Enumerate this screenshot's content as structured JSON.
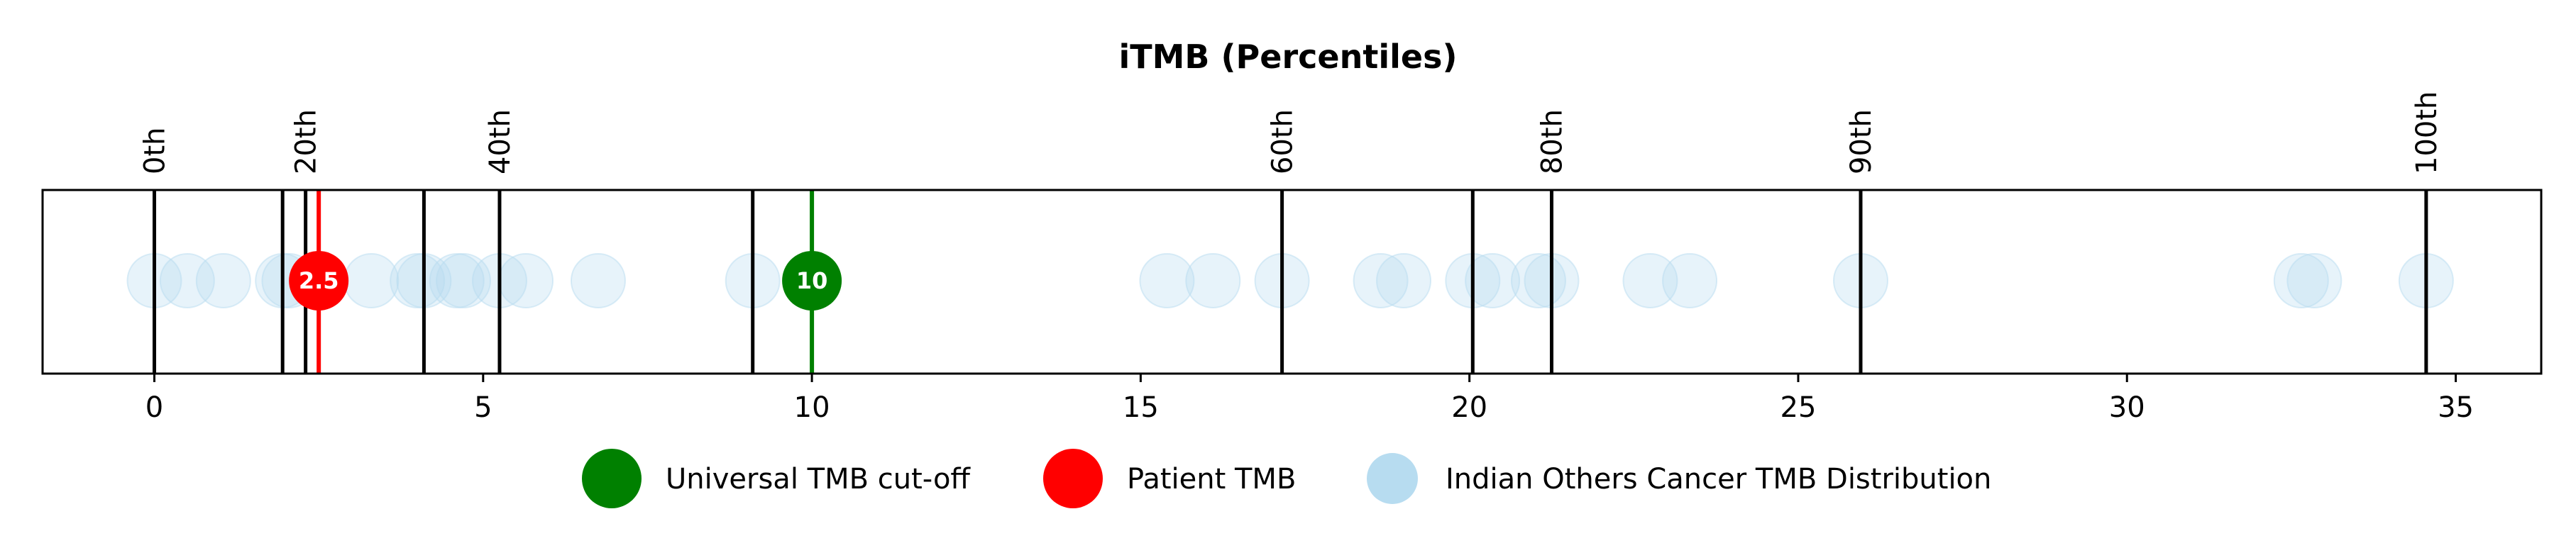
{
  "chart_data": {
    "type": "scatter",
    "title": "iTMB (Percentiles)",
    "xlim": [
      -1.7,
      36.3
    ],
    "xticks": [
      0,
      5,
      10,
      15,
      20,
      25,
      30,
      35
    ],
    "grid": false,
    "legend_position": "bottom",
    "percentile_lines": [
      {
        "label": "0th",
        "x": 0.0
      },
      {
        "label": "",
        "x": 1.95
      },
      {
        "label": "20th",
        "x": 2.3
      },
      {
        "label": "",
        "x": 4.1
      },
      {
        "label": "40th",
        "x": 5.25
      },
      {
        "label": "",
        "x": 9.1
      },
      {
        "label": "60th",
        "x": 17.15
      },
      {
        "label": "",
        "x": 20.05
      },
      {
        "label": "80th",
        "x": 21.25
      },
      {
        "label": "90th",
        "x": 25.95
      },
      {
        "label": "100th",
        "x": 34.55
      }
    ],
    "distribution": {
      "name": "Indian Others Cancer TMB Distribution",
      "color": "#b7dcf0",
      "values": [
        0.0,
        0.5,
        1.05,
        1.95,
        2.05,
        3.3,
        4.0,
        4.1,
        4.6,
        4.7,
        5.25,
        5.65,
        6.75,
        9.1,
        15.4,
        16.1,
        17.15,
        18.65,
        19.0,
        20.05,
        20.35,
        21.05,
        21.25,
        22.75,
        23.35,
        25.95,
        32.65,
        32.85,
        34.55
      ]
    },
    "patient": {
      "name": "Patient TMB",
      "value": 2.5,
      "label": "2.5",
      "color": "#ff0000"
    },
    "cutoff": {
      "name": "Universal TMB cut-off",
      "value": 10,
      "label": "10",
      "color": "#008000"
    }
  }
}
